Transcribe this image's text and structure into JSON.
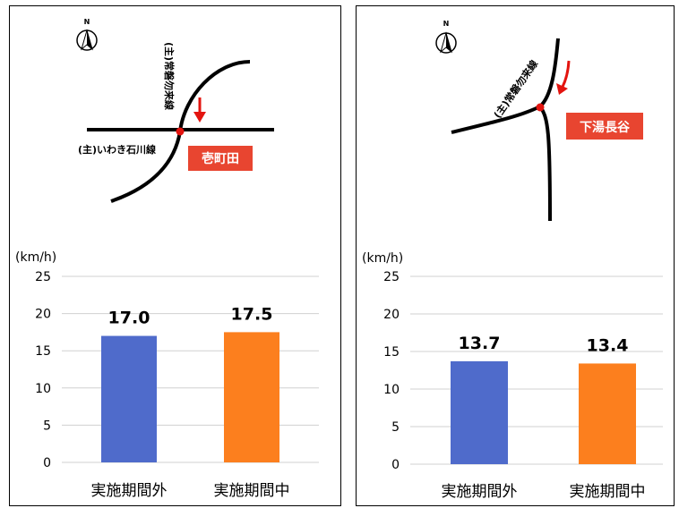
{
  "colors": {
    "series_outside": "#4F6BCB",
    "series_during": "#FC7F1E",
    "badge": "#E84530",
    "arrow": "#E3140F",
    "junction": "#E3140F"
  },
  "panels": [
    {
      "map": {
        "north_label": "N",
        "road_main_label": "(主)いわき石川線",
        "road_vertical_label": "(主)常磐勿来線",
        "location_badge": "壱町田"
      }
    },
    {
      "map": {
        "north_label": "N",
        "road_curve_label": "(主)常磐勿来線",
        "location_badge": "下湯長谷"
      }
    }
  ],
  "chart_data": [
    {
      "type": "bar",
      "unit_label": "(km/h)",
      "categories": [
        "実施期間外",
        "実施期間中"
      ],
      "values": [
        17.0,
        17.5
      ],
      "value_labels": [
        "17.0",
        "17.5"
      ],
      "ylim": [
        0,
        25
      ],
      "yticks": [
        "0",
        "5",
        "10",
        "15",
        "20",
        "25"
      ],
      "grid": true
    },
    {
      "type": "bar",
      "unit_label": "(km/h)",
      "categories": [
        "実施期間外",
        "実施期間中"
      ],
      "values": [
        13.7,
        13.4
      ],
      "value_labels": [
        "13.7",
        "13.4"
      ],
      "ylim": [
        0,
        25
      ],
      "yticks": [
        "0",
        "5",
        "10",
        "15",
        "20",
        "25"
      ],
      "grid": true
    }
  ]
}
